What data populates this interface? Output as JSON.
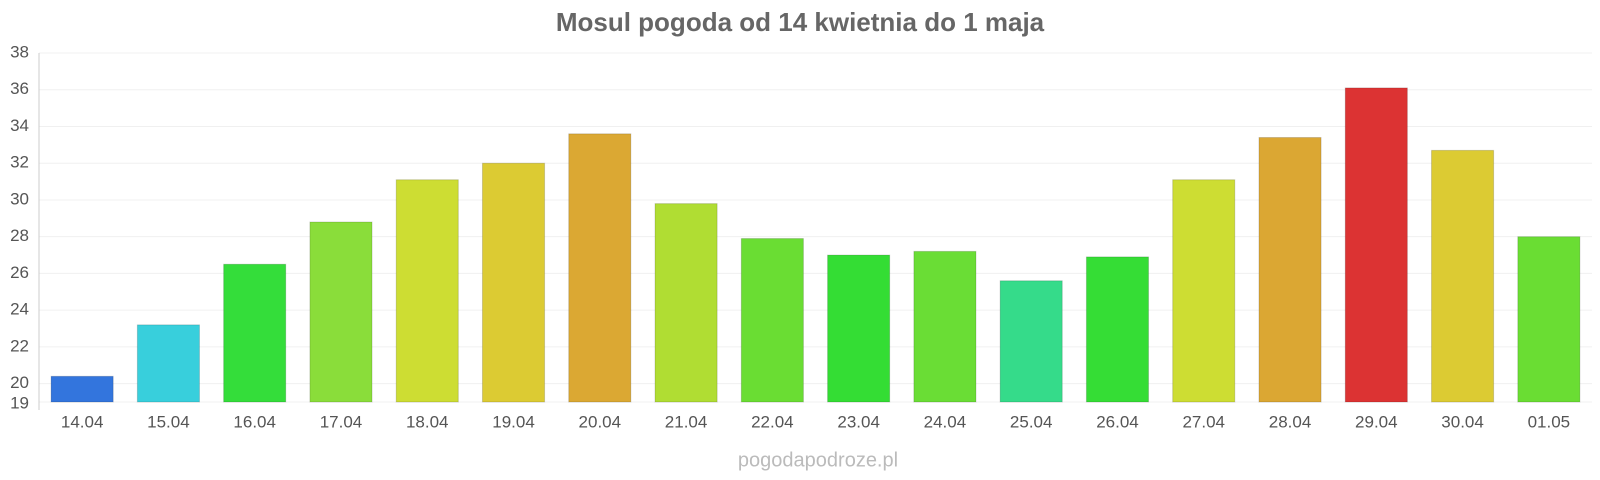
{
  "chart_data": {
    "type": "bar",
    "title": "Mosul pogoda od 14 kwietnia do 1 maja",
    "categories": [
      "14.04",
      "15.04",
      "16.04",
      "17.04",
      "18.04",
      "19.04",
      "20.04",
      "21.04",
      "22.04",
      "23.04",
      "24.04",
      "25.04",
      "26.04",
      "27.04",
      "28.04",
      "29.04",
      "30.04",
      "01.05"
    ],
    "values": [
      20.4,
      23.2,
      26.5,
      28.8,
      31.1,
      32.0,
      33.6,
      29.8,
      27.9,
      27.0,
      27.2,
      25.6,
      26.9,
      31.1,
      33.4,
      36.1,
      32.7,
      28.0
    ],
    "colors": [
      "#3375dd",
      "#38cfdc",
      "#34dd3a",
      "#8add3a",
      "#cddd33",
      "#dccb33",
      "#dba833",
      "#b0dd33",
      "#6add33",
      "#34dd34",
      "#6add35",
      "#35db8a",
      "#35dd35",
      "#cddd33",
      "#dba733",
      "#dc3333",
      "#dccb33",
      "#6add33"
    ],
    "ylim": [
      19,
      38
    ],
    "yticks": [
      19,
      20,
      22,
      24,
      26,
      28,
      30,
      32,
      34,
      36,
      38
    ],
    "grid": true,
    "source": "pogodapodroze.pl"
  }
}
